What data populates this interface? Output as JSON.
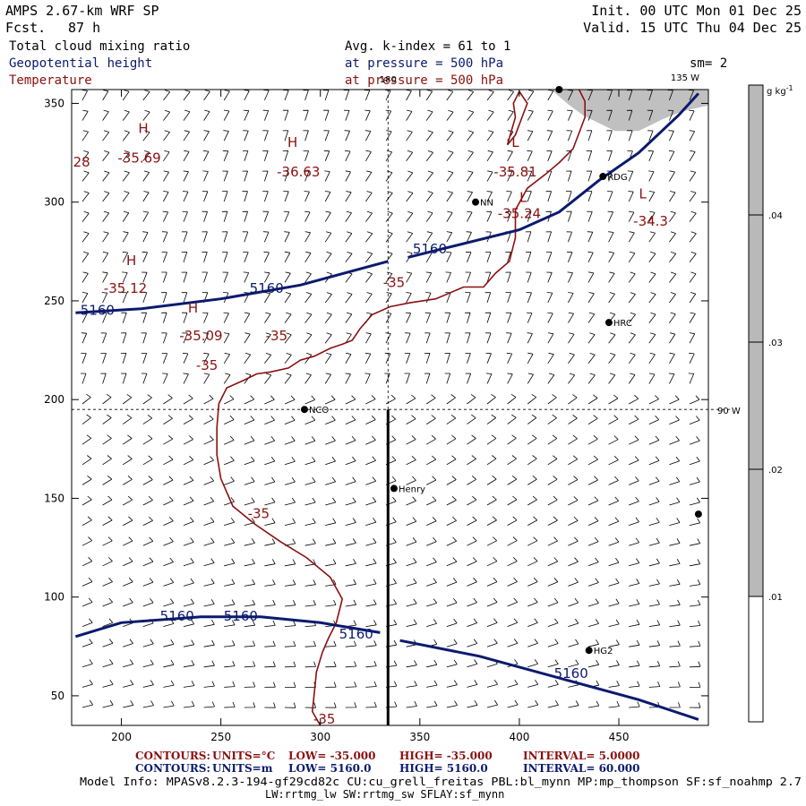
{
  "header": {
    "model": "AMPS 2.67-km WRF SP",
    "fcst_label": "Fcst.",
    "fcst_value": "87 h",
    "init": "Init. 00 UTC Mon 01 Dec 25",
    "valid": "Valid. 15 UTC Thu 04 Dec 25",
    "field1": "Total cloud mixing ratio",
    "field2": "Geopotential height",
    "field3": "Temperature",
    "avg": "Avg. k-index =  61 to   1",
    "press1": "at pressure =  500 hPa",
    "press2": "at pressure =  500 hPa",
    "sm": "sm= 2"
  },
  "colors": {
    "height": "#0b1a6e",
    "temperature": "#8a1010",
    "cloud": "#c0c0c0",
    "colorbar": "#b9b9b9"
  },
  "chart_data": {
    "type": "contour",
    "xlim": [
      175,
      495
    ],
    "ylim": [
      35,
      357
    ],
    "x_ticks": [
      200,
      250,
      300,
      350,
      400,
      450
    ],
    "y_ticks": [
      50,
      100,
      150,
      200,
      250,
      300,
      350
    ],
    "colorbar": {
      "unit": "g kg",
      "unit_sup": "-1",
      "ticks": [
        ".01",
        ".02",
        ".03",
        ".04"
      ]
    },
    "meridian_labels": {
      "top": "180",
      "lon135": "135 W",
      "lon90": "90 W"
    },
    "height_contours": [
      {
        "label": "5160",
        "points": [
          [
            177,
            244
          ],
          [
            210,
            246
          ],
          [
            250,
            251
          ],
          [
            290,
            258
          ],
          [
            334,
            270
          ]
        ]
      },
      {
        "label": "5160",
        "points": [
          [
            344,
            272
          ],
          [
            360,
            276
          ],
          [
            400,
            286
          ],
          [
            420,
            295
          ],
          [
            440,
            311
          ],
          [
            460,
            325
          ],
          [
            480,
            344
          ],
          [
            490,
            355
          ]
        ]
      },
      {
        "label": "5160",
        "points": [
          [
            177,
            80
          ],
          [
            200,
            87
          ],
          [
            240,
            90
          ],
          [
            270,
            90
          ],
          [
            300,
            87
          ],
          [
            330,
            82
          ]
        ]
      },
      {
        "label": "5160",
        "points": [
          [
            340,
            78
          ],
          [
            380,
            70
          ],
          [
            420,
            59
          ],
          [
            460,
            48
          ],
          [
            490,
            38
          ]
        ]
      }
    ],
    "height_labels": [
      {
        "text": "5160",
        "x": 188,
        "y": 243
      },
      {
        "text": "5160",
        "x": 273,
        "y": 254
      },
      {
        "text": "5160",
        "x": 355,
        "y": 274
      },
      {
        "text": "5160",
        "x": 228,
        "y": 88
      },
      {
        "text": "5160",
        "x": 260,
        "y": 88
      },
      {
        "text": "5160",
        "x": 318,
        "y": 79
      },
      {
        "text": "5160",
        "x": 426,
        "y": 59
      }
    ],
    "temperature_contours": [
      {
        "label": "-35",
        "points": [
          [
            300,
            35
          ],
          [
            296,
            42
          ],
          [
            297,
            52
          ],
          [
            298,
            62
          ],
          [
            301,
            72
          ],
          [
            304,
            79
          ],
          [
            308,
            87
          ],
          [
            311,
            99
          ],
          [
            305,
            110
          ],
          [
            293,
            120
          ],
          [
            280,
            128
          ],
          [
            267,
            137
          ],
          [
            256,
            146
          ],
          [
            250,
            160
          ],
          [
            248,
            172
          ],
          [
            248,
            186
          ],
          [
            249,
            198
          ],
          [
            253,
            206
          ],
          [
            262,
            210
          ],
          [
            268,
            213
          ],
          [
            275,
            214
          ],
          [
            284,
            216
          ],
          [
            290,
            220
          ],
          [
            297,
            222
          ],
          [
            305,
            226
          ],
          [
            311,
            228
          ],
          [
            316,
            230
          ],
          [
            320,
            236
          ],
          [
            326,
            243
          ],
          [
            335,
            247
          ],
          [
            345,
            249
          ],
          [
            358,
            251
          ],
          [
            372,
            257
          ],
          [
            382,
            257
          ],
          [
            388,
            264
          ],
          [
            395,
            270
          ],
          [
            398,
            282
          ],
          [
            398,
            296
          ],
          [
            404,
            307
          ],
          [
            413,
            314
          ],
          [
            420,
            320
          ],
          [
            427,
            327
          ],
          [
            430,
            335
          ],
          [
            433,
            343
          ],
          [
            433,
            351
          ],
          [
            430,
            357
          ]
        ]
      },
      {
        "label": "",
        "points": [
          [
            394,
            329
          ],
          [
            396,
            336
          ],
          [
            398,
            343
          ],
          [
            397,
            350
          ],
          [
            400,
            356
          ],
          [
            404,
            350
          ],
          [
            401,
            342
          ],
          [
            398,
            334
          ],
          [
            394,
            329
          ]
        ]
      }
    ],
    "temperature_labels": [
      {
        "text": "-35",
        "x": 302,
        "y": 36
      },
      {
        "text": "-35",
        "x": 269,
        "y": 140
      },
      {
        "text": "-35",
        "x": 243,
        "y": 215
      },
      {
        "text": "-35",
        "x": 278,
        "y": 230
      },
      {
        "text": "-35",
        "x": 337,
        "y": 257
      }
    ],
    "extrema": [
      {
        "type": "H",
        "value": "-35.69",
        "x": 211,
        "y": 335,
        "vx": 209,
        "vy": 320
      },
      {
        "type": "H",
        "value": "-36.63",
        "x": 286,
        "y": 328,
        "vx": 289,
        "vy": 313
      },
      {
        "type": "H",
        "value": "-35.12",
        "x": 205,
        "y": 268,
        "vx": 202,
        "vy": 254
      },
      {
        "type": "H",
        "value": "-35.09",
        "x": 236,
        "y": 244,
        "vx": 240,
        "vy": 230
      },
      {
        "type": "L",
        "value": "-35.81",
        "x": 398,
        "y": 328,
        "vx": 398,
        "vy": 313
      },
      {
        "type": "L",
        "value": "-35.24",
        "x": 402,
        "y": 300,
        "vx": 400,
        "vy": 292
      },
      {
        "type": "L",
        "value": "-34.3",
        "x": 462,
        "y": 302,
        "vx": 466,
        "vy": 288
      }
    ],
    "partial_labels": [
      {
        "text": "28",
        "x": 180,
        "y": 318
      }
    ],
    "stations": [
      {
        "name": "NCO",
        "x": 292,
        "y": 195
      },
      {
        "name": "Henry",
        "x": 337,
        "y": 155
      },
      {
        "name": "RDG",
        "x": 442,
        "y": 313
      },
      {
        "name": "HRC",
        "x": 445,
        "y": 239
      },
      {
        "name": "HG2",
        "x": 435,
        "y": 73
      },
      {
        "name": "NN",
        "x": 378,
        "y": 300
      },
      {
        "name": "",
        "x": 420,
        "y": 357
      },
      {
        "name": "",
        "x": 490,
        "y": 142
      }
    ],
    "cloud_region": [
      [
        416,
        357
      ],
      [
        495,
        357
      ],
      [
        495,
        349
      ],
      [
        482,
        346
      ],
      [
        472,
        342
      ],
      [
        460,
        336
      ],
      [
        448,
        336
      ],
      [
        440,
        340
      ],
      [
        432,
        344
      ],
      [
        424,
        350
      ]
    ],
    "meridian_180_x": 334,
    "lat_90w_y": 195,
    "cross_section_x": 334
  },
  "footer": {
    "contours_t_label": "CONTOURS:",
    "contours_t_units": "UNITS=°C",
    "contours_t_low": "LOW= -35.000",
    "contours_t_high": "HIGH= -35.000",
    "contours_t_interval": "INTERVAL=   5.0000",
    "contours_z_label": "CONTOURS:",
    "contours_z_units": "UNITS=m",
    "contours_z_low": "LOW=  5160.0",
    "contours_z_high": "HIGH= 5160.0",
    "contours_z_interval": "INTERVAL=  60.000",
    "model_info": "Model Info: MPASv8.2.3-194-gf29cd82c CU:cu_grell_freitas PBL:bl_mynn MP:mp_thompson SF:sf_noahmp 2.7",
    "model_info2": "LW:rrtmg_lw SW:rrtmg_sw SFLAY:sf_mynn"
  }
}
